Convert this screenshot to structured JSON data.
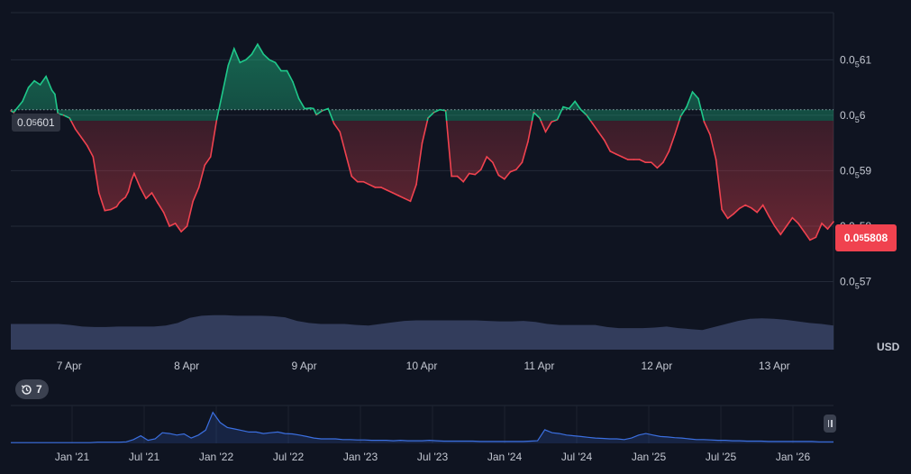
{
  "axis_currency": "USD",
  "price_badge": {
    "prefix": "0.0",
    "sub": "5",
    "rest": "5808"
  },
  "baseline_badge": {
    "prefix": "0.0",
    "sub": "5",
    "rest": "601"
  },
  "history_badge": {
    "icon": "history-icon",
    "count": "7"
  },
  "colors": {
    "up": "#1fc88a",
    "down": "#f0424f",
    "background": "#0f1421",
    "navigator": "#3b6fe0",
    "volume": "#3a4466"
  },
  "chart_data": {
    "type": "area",
    "title": "",
    "xlabel": "",
    "ylabel": "",
    "ylim": [
      5.67e-06,
      6.185e-06
    ],
    "baseline": 6.01e-06,
    "last_value": 5.808e-06,
    "grid": true,
    "y_ticks": [
      {
        "value": 6.1e-06,
        "prefix": "0.0",
        "sub": "5",
        "rest": "61"
      },
      {
        "value": 6e-06,
        "prefix": "0.0",
        "sub": "5",
        "rest": "6"
      },
      {
        "value": 5.9e-06,
        "prefix": "0.0",
        "sub": "5",
        "rest": "59"
      },
      {
        "value": 5.8e-06,
        "prefix": "0.0",
        "sub": "5",
        "rest": "58"
      },
      {
        "value": 5.7e-06,
        "prefix": "0.0",
        "sub": "5",
        "rest": "57"
      }
    ],
    "x_ticks": [
      "7 Apr",
      "8 Apr",
      "9 Apr",
      "10 Apr",
      "11 Apr",
      "12 Apr",
      "13 Apr"
    ],
    "x": [
      0,
      0.05,
      0.1,
      0.2,
      0.3,
      0.4,
      0.5,
      0.6,
      0.7,
      0.75,
      0.8,
      0.9,
      1.0,
      1.1,
      1.2,
      1.3,
      1.4,
      1.5,
      1.6,
      1.7,
      1.8,
      1.85,
      1.9,
      1.95,
      2.0,
      2.05,
      2.1,
      2.2,
      2.3,
      2.4,
      2.5,
      2.6,
      2.7,
      2.8,
      2.9,
      3.0,
      3.1,
      3.2,
      3.3,
      3.4,
      3.5,
      3.6,
      3.7,
      3.8,
      3.9,
      4.0,
      4.1,
      4.2,
      4.3,
      4.4,
      4.5,
      4.6,
      4.7,
      4.8,
      4.9,
      5.0,
      5.1,
      5.15,
      5.2,
      5.3,
      5.4,
      5.5,
      5.6,
      5.7,
      5.8,
      5.9,
      6.0,
      6.1,
      6.2,
      6.3,
      6.4,
      6.5,
      6.6,
      6.7,
      6.8,
      6.9,
      7.0,
      7.1,
      7.2,
      7.3,
      7.4,
      7.5,
      7.6,
      7.7,
      7.8,
      7.9,
      8.0,
      8.1,
      8.2,
      8.3,
      8.4,
      8.5,
      8.6,
      8.7,
      8.8,
      8.9,
      9.0,
      9.1,
      9.2,
      9.3,
      9.4,
      9.5,
      9.6,
      9.7,
      9.8,
      9.9,
      10.0,
      10.1,
      10.2,
      10.3,
      10.4,
      10.5,
      10.6,
      10.7,
      10.8,
      10.9,
      11.0,
      11.1,
      11.2,
      11.3,
      11.4,
      11.5,
      11.6,
      11.7,
      11.8,
      11.9,
      12.0,
      12.1,
      12.2,
      12.3,
      12.4,
      12.5,
      12.6,
      12.7,
      12.8,
      12.9,
      13.0,
      13.1,
      13.2,
      13.3,
      13.4,
      13.5,
      13.6,
      13.7,
      13.8,
      13.9,
      14.0
    ],
    "values": [
      6.008e-06,
      6.005e-06,
      6.012e-06,
      6.025e-06,
      6.05e-06,
      6.062e-06,
      6.055e-06,
      6.07e-06,
      6.045e-06,
      6.038e-06,
      6.003e-06,
      6e-06,
      5.995e-06,
      5.975e-06,
      5.96e-06,
      5.945e-06,
      5.925e-06,
      5.86e-06,
      5.828e-06,
      5.83e-06,
      5.835e-06,
      5.843e-06,
      5.848e-06,
      5.852e-06,
      5.862e-06,
      5.882e-06,
      5.895e-06,
      5.87e-06,
      5.85e-06,
      5.86e-06,
      5.842e-06,
      5.825e-06,
      5.8e-06,
      5.805e-06,
      5.79e-06,
      5.8e-06,
      5.845e-06,
      5.87e-06,
      5.91e-06,
      5.925e-06,
      5.99e-06,
      6.04e-06,
      6.09e-06,
      6.12e-06,
      6.095e-06,
      6.1e-06,
      6.11e-06,
      6.128e-06,
      6.11e-06,
      6.1e-06,
      6.095e-06,
      6.08e-06,
      6.08e-06,
      6.06e-06,
      6.03e-06,
      6.012e-06,
      6.013e-06,
      6.012e-06,
      6.001e-06,
      6.008e-06,
      6.012e-06,
      5.985e-06,
      5.97e-06,
      5.93e-06,
      5.89e-06,
      5.88e-06,
      5.88e-06,
      5.875e-06,
      5.87e-06,
      5.87e-06,
      5.865e-06,
      5.86e-06,
      5.855e-06,
      5.85e-06,
      5.845e-06,
      5.875e-06,
      5.95e-06,
      5.995e-06,
      6.005e-06,
      6.01e-06,
      6.008e-06,
      5.89e-06,
      5.89e-06,
      5.88e-06,
      5.895e-06,
      5.893e-06,
      5.902e-06,
      5.925e-06,
      5.915e-06,
      5.892e-06,
      5.885e-06,
      5.898e-06,
      5.902e-06,
      5.915e-06,
      5.952e-06,
      6.005e-06,
      5.995e-06,
      5.97e-06,
      5.988e-06,
      5.992e-06,
      6.015e-06,
      6.012e-06,
      6.025e-06,
      6.01e-06,
      6e-06,
      5.985e-06,
      5.97e-06,
      5.955e-06,
      5.935e-06,
      5.93e-06,
      5.925e-06,
      5.92e-06,
      5.92e-06,
      5.92e-06,
      5.915e-06,
      5.915e-06,
      5.905e-06,
      5.915e-06,
      5.935e-06,
      5.965e-06,
      5.998e-06,
      6.015e-06,
      6.042e-06,
      6.03e-06,
      5.988e-06,
      5.965e-06,
      5.92e-06,
      5.83e-06,
      5.814e-06,
      5.822e-06,
      5.832e-06,
      5.838e-06,
      5.833e-06,
      5.825e-06,
      5.838e-06,
      5.818e-06,
      5.8e-06,
      5.785e-06,
      5.8e-06,
      5.815e-06,
      5.805e-06,
      5.79e-06,
      5.775e-06,
      5.78e-06,
      5.805e-06,
      5.795e-06,
      5.808e-06
    ]
  },
  "volume_data": {
    "values": [
      0.5,
      0.5,
      0.5,
      0.5,
      0.5,
      0.48,
      0.45,
      0.44,
      0.44,
      0.45,
      0.45,
      0.45,
      0.45,
      0.47,
      0.52,
      0.62,
      0.66,
      0.67,
      0.67,
      0.66,
      0.66,
      0.66,
      0.65,
      0.63,
      0.56,
      0.52,
      0.5,
      0.5,
      0.5,
      0.48,
      0.47,
      0.5,
      0.53,
      0.56,
      0.57,
      0.57,
      0.57,
      0.57,
      0.57,
      0.57,
      0.56,
      0.55,
      0.55,
      0.56,
      0.54,
      0.5,
      0.48,
      0.48,
      0.48,
      0.48,
      0.44,
      0.42,
      0.42,
      0.42,
      0.43,
      0.45,
      0.42,
      0.4,
      0.38,
      0.44,
      0.5,
      0.56,
      0.6,
      0.61,
      0.6,
      0.58,
      0.55,
      0.52,
      0.5,
      0.47
    ]
  },
  "navigator": {
    "x_ticks": [
      "Jan '21",
      "Jul '21",
      "Jan '22",
      "Jul '22",
      "Jan '23",
      "Jul '23",
      "Jan '24",
      "Jul '24",
      "Jan '25",
      "Jul '25",
      "Jan '26"
    ],
    "values": [
      0.02,
      0.02,
      0.02,
      0.02,
      0.02,
      0.02,
      0.02,
      0.02,
      0.02,
      0.02,
      0.02,
      0.02,
      0.03,
      0.03,
      0.03,
      0.03,
      0.04,
      0.1,
      0.2,
      0.08,
      0.12,
      0.28,
      0.26,
      0.22,
      0.25,
      0.14,
      0.22,
      0.35,
      0.82,
      0.55,
      0.42,
      0.38,
      0.34,
      0.3,
      0.3,
      0.26,
      0.28,
      0.3,
      0.26,
      0.25,
      0.22,
      0.18,
      0.14,
      0.12,
      0.12,
      0.12,
      0.1,
      0.1,
      0.09,
      0.09,
      0.08,
      0.08,
      0.08,
      0.07,
      0.08,
      0.07,
      0.07,
      0.07,
      0.08,
      0.07,
      0.06,
      0.06,
      0.06,
      0.06,
      0.06,
      0.05,
      0.05,
      0.05,
      0.05,
      0.05,
      0.05,
      0.05,
      0.06,
      0.07,
      0.36,
      0.28,
      0.26,
      0.22,
      0.2,
      0.18,
      0.16,
      0.14,
      0.13,
      0.12,
      0.12,
      0.1,
      0.14,
      0.22,
      0.26,
      0.22,
      0.18,
      0.17,
      0.15,
      0.14,
      0.12,
      0.1,
      0.1,
      0.09,
      0.08,
      0.08,
      0.07,
      0.07,
      0.06,
      0.06,
      0.06,
      0.05,
      0.05,
      0.05,
      0.05,
      0.05,
      0.05,
      0.05,
      0.04,
      0.04,
      0.04
    ]
  }
}
